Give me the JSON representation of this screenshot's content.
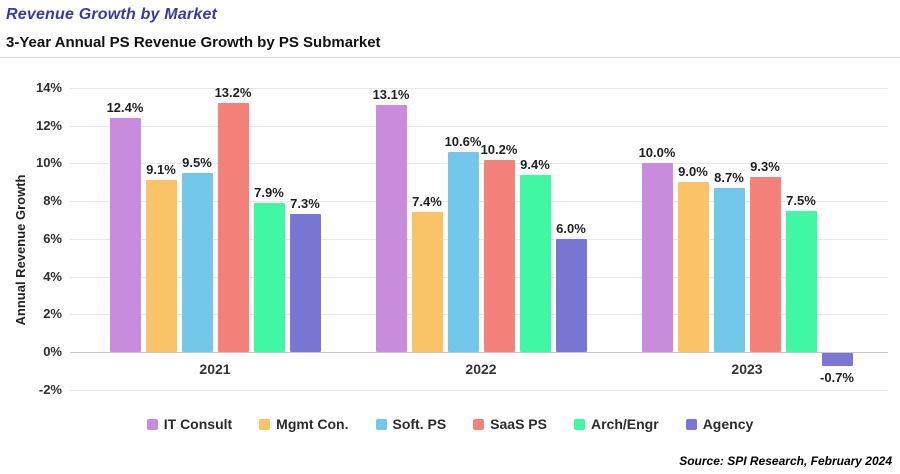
{
  "header": {
    "title": "Revenue Growth by Market",
    "subtitle": "3-Year Annual PS Revenue Growth by PS Submarket"
  },
  "source": "Source: SPI Research, February 2024",
  "colors": {
    "title": "#3a38a6",
    "text": "#2b2b2b",
    "grid": "#e7e7ea",
    "zero_axis": "#c7c7cb"
  },
  "chart_data": {
    "type": "bar",
    "title": "3-Year Annual PS Revenue Growth by PS Submarket",
    "categories": [
      "2021",
      "2022",
      "2023"
    ],
    "series": [
      {
        "name": "IT Consult",
        "color": "#c98bdb",
        "values": [
          12.4,
          13.1,
          10.0
        ]
      },
      {
        "name": "Mgmt Con.",
        "color": "#fbc368",
        "values": [
          9.1,
          7.4,
          9.0
        ]
      },
      {
        "name": "Soft. PS",
        "color": "#73c7e8",
        "values": [
          9.5,
          10.6,
          8.7
        ]
      },
      {
        "name": "SaaS PS",
        "color": "#f5817b",
        "values": [
          13.2,
          10.2,
          9.3
        ]
      },
      {
        "name": "Arch/Engr",
        "color": "#40f7a4",
        "values": [
          7.9,
          9.4,
          7.5
        ]
      },
      {
        "name": "Agency",
        "color": "#7977d3",
        "values": [
          7.3,
          6.0,
          -0.7
        ]
      }
    ],
    "xlabel": "",
    "ylabel": "Annual Revenue Growth",
    "ylim": [
      -2,
      14
    ],
    "ytick_step": 2,
    "ytick_format": "percent",
    "data_label_format": "one_decimal_percent",
    "grid": true,
    "legend_position": "bottom"
  }
}
